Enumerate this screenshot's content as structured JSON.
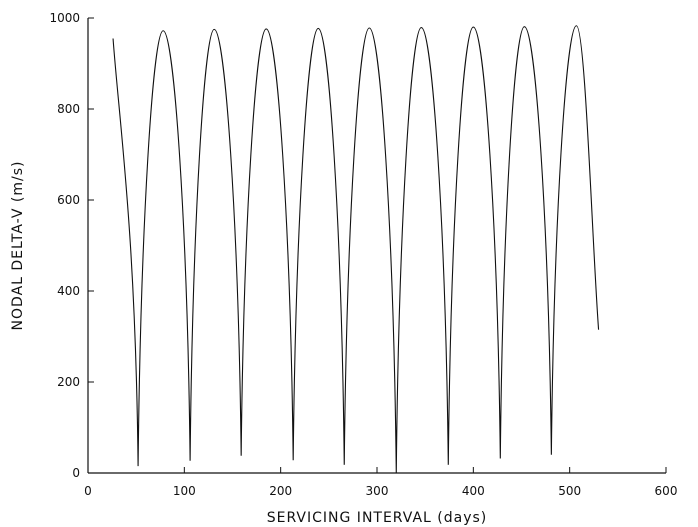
{
  "chart_data": {
    "type": "line",
    "xlabel": "SERVICING INTERVAL (days)",
    "ylabel": "NODAL DELTA-V (m/s)",
    "xlim": [
      0,
      600
    ],
    "ylim": [
      0,
      1000
    ],
    "xticks": [
      0,
      100,
      200,
      300,
      400,
      500,
      600
    ],
    "yticks": [
      0,
      200,
      400,
      600,
      800,
      1000
    ],
    "grid": false,
    "series": [
      {
        "peaks": [
          {
            "x": 78,
            "y": 972
          },
          {
            "x": 131,
            "y": 975
          },
          {
            "x": 185,
            "y": 976
          },
          {
            "x": 239,
            "y": 977
          },
          {
            "x": 292,
            "y": 978
          },
          {
            "x": 346,
            "y": 979
          },
          {
            "x": 400,
            "y": 980
          },
          {
            "x": 453,
            "y": 981
          },
          {
            "x": 507,
            "y": 983
          }
        ],
        "minima": [
          {
            "x": 52,
            "y": 15
          },
          {
            "x": 106,
            "y": 27
          },
          {
            "x": 159,
            "y": 38
          },
          {
            "x": 213,
            "y": 28
          },
          {
            "x": 266,
            "y": 18
          },
          {
            "x": 320,
            "y": 0
          },
          {
            "x": 374,
            "y": 18
          },
          {
            "x": 428,
            "y": 32
          },
          {
            "x": 481,
            "y": 40
          }
        ],
        "start": {
          "x": 26,
          "y": 955
        },
        "end": {
          "x": 530,
          "y": 315
        }
      }
    ]
  }
}
